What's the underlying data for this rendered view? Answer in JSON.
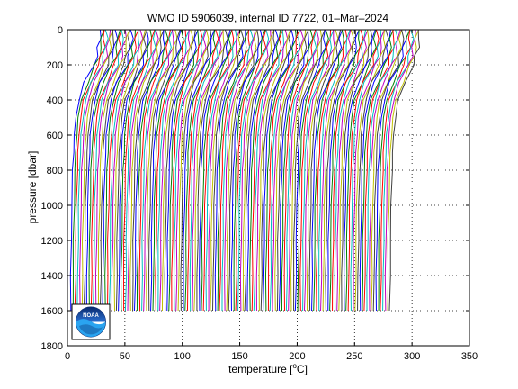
{
  "chart_data": {
    "type": "line",
    "title": "WMO ID 5906039, internal ID 7722, 01–Mar–2024",
    "xlabel": "temperature [",
    "xlabel_unit": "o",
    "xlabel_suffix": "C]",
    "ylabel": "pressure [dbar]",
    "xlim": [
      0,
      350
    ],
    "ylim": [
      0,
      1800
    ],
    "y_reversed": true,
    "grid": true,
    "x_ticks": [
      0,
      50,
      100,
      150,
      200,
      250,
      300,
      350
    ],
    "y_ticks": [
      0,
      200,
      400,
      600,
      800,
      1000,
      1200,
      1400,
      1600,
      1800
    ],
    "profile_count": 140,
    "profile_offset_step": 2,
    "first_profile_offset": 0,
    "profile_shape": {
      "pressure": [
        0,
        50,
        100,
        150,
        200,
        300,
        400,
        500,
        600,
        700,
        800,
        1000,
        1200,
        1400,
        1600
      ],
      "temperature": [
        28.5,
        28,
        27.2,
        25.5,
        23,
        15.5,
        10,
        7.5,
        6,
        5.2,
        4.6,
        3.8,
        3.3,
        3.0,
        2.7
      ]
    },
    "line_colors": [
      "#0000ff",
      "#008000",
      "#ff0000",
      "#00bfbf",
      "#bf00bf",
      "#bfbf00",
      "#404040"
    ],
    "logo": "noaa-logo"
  }
}
